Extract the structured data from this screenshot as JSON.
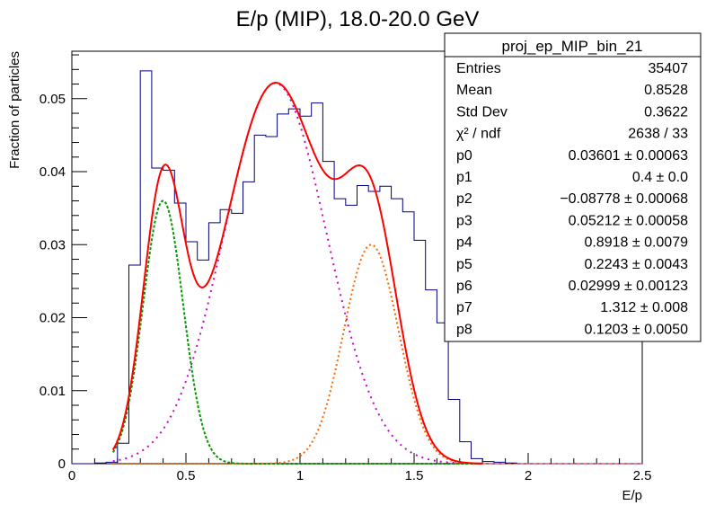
{
  "chart_data": {
    "type": "line",
    "title": "E/p (MIP), 18.0-20.0 GeV",
    "xlabel": "E/p",
    "ylabel": "Fraction of particles",
    "xlim": [
      0,
      2.5
    ],
    "ylim": [
      0,
      0.0565
    ],
    "x_ticks": [
      0,
      0.5,
      1,
      1.5,
      2,
      2.5
    ],
    "x_tick_labels": [
      "0",
      "0.5",
      "1",
      "1.5",
      "2",
      "2.5"
    ],
    "y_ticks": [
      0,
      0.01,
      0.02,
      0.03,
      0.04,
      0.05
    ],
    "y_tick_labels": [
      "0",
      "0.01",
      "0.02",
      "0.03",
      "0.04",
      "0.05"
    ],
    "grid": false,
    "histogram": {
      "color": "#000080",
      "bin_width": 0.05,
      "x_low": 0,
      "values": [
        0,
        0,
        0.0001,
        0.0002,
        0.0028,
        0.0272,
        0.0538,
        0.0405,
        0.0402,
        0.0357,
        0.0304,
        0.0279,
        0.033,
        0.0348,
        0.0343,
        0.0386,
        0.045,
        0.0448,
        0.0479,
        0.0486,
        0.0476,
        0.0494,
        0.0414,
        0.0363,
        0.0354,
        0.0381,
        0.0373,
        0.038,
        0.0363,
        0.0345,
        0.0306,
        0.0238,
        0.0193,
        0.0088,
        0.003,
        0.0007,
        0.0003,
        0.0002,
        0.0001,
        0,
        0,
        0,
        0,
        0,
        0,
        0,
        0,
        0,
        0,
        0
      ]
    },
    "fit": {
      "p0": 0.03601,
      "p1": 0.4,
      "p2": -0.08778,
      "p3": 0.05212,
      "p4": 0.8918,
      "p5": 0.2243,
      "p6": 0.02999,
      "p7": 1.312,
      "p8": 0.1203,
      "x_start": 0.18,
      "x_end": 1.8
    },
    "series": [
      {
        "name": "",
        "color": "#ff0000",
        "role": "total-fit"
      },
      {
        "name": "",
        "color": "#009900",
        "role": "gaussian-1"
      },
      {
        "name": "",
        "color": "#cc00cc",
        "role": "gaussian-2"
      },
      {
        "name": "",
        "color": "#ff6600",
        "role": "gaussian-3"
      }
    ]
  },
  "stats_box": {
    "name": "proj_ep_MIP_bin_21",
    "rows": [
      {
        "label": "Entries",
        "value": "35407"
      },
      {
        "label": "Mean",
        "value": "0.8528"
      },
      {
        "label": "Std Dev",
        "value": "0.3622"
      },
      {
        "label": "χ² / ndf",
        "value": "2638 / 33"
      },
      {
        "label": "p0",
        "value": "0.03601 ± 0.00063"
      },
      {
        "label": "p1",
        "value": "0.4 ± 0.0"
      },
      {
        "label": "p2",
        "value": "−0.08778 ± 0.00068"
      },
      {
        "label": "p3",
        "value": "0.05212 ± 0.00058"
      },
      {
        "label": "p4",
        "value": "0.8918 ± 0.0079"
      },
      {
        "label": "p5",
        "value": "0.2243 ± 0.0043"
      },
      {
        "label": "p6",
        "value": "0.02999 ± 0.00123"
      },
      {
        "label": "p7",
        "value": "1.312 ± 0.008"
      },
      {
        "label": "p8",
        "value": "0.1203 ± 0.0050"
      }
    ]
  }
}
